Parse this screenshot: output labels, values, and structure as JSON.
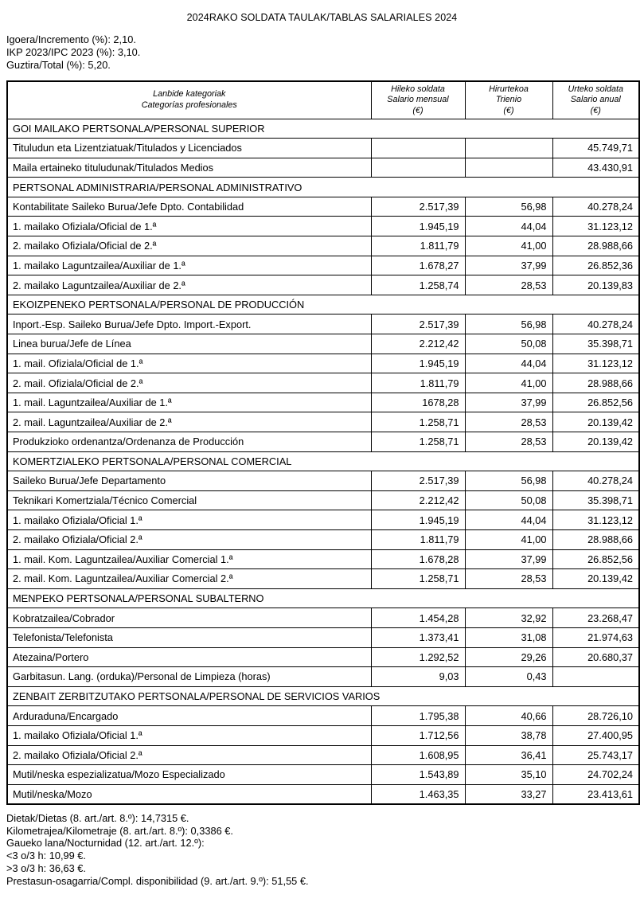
{
  "page": {
    "title": "2024RAKO SOLDATA TAULAK/TABLAS SALARIALES 2024"
  },
  "intro_lines": [
    "Igoera/Incremento (%): 2,10.",
    "IKP 2023/IPC 2023 (%): 3,10.",
    "Guztira/Total (%): 5,20."
  ],
  "table": {
    "columns": [
      {
        "lines": [
          "Lanbide kategoriak",
          "Categorías profesionales"
        ]
      },
      {
        "lines": [
          "Hileko soldata",
          "Salario mensual",
          "(€)"
        ]
      },
      {
        "lines": [
          "Hirurtekoa",
          "Trienio",
          "(€)"
        ]
      },
      {
        "lines": [
          "Urteko soldata",
          "Salario anual",
          "(€)"
        ]
      }
    ],
    "sections": [
      {
        "header": "GOI MAILAKO PERTSONALA/PERSONAL SUPERIOR",
        "rows": [
          {
            "label": "Tituludun eta Lizentziatuak/Titulados y Licenciados",
            "monthly": "",
            "triennium": "",
            "annual": "45.749,71"
          },
          {
            "label": "Maila ertaineko tituludunak/Titulados Medios",
            "monthly": "",
            "triennium": "",
            "annual": "43.430,91"
          }
        ]
      },
      {
        "header": "PERTSONAL ADMINISTRARIA/PERSONAL ADMINISTRATIVO",
        "rows": [
          {
            "label": "Kontabilitate Saileko Burua/Jefe Dpto. Contabilidad",
            "monthly": "2.517,39",
            "triennium": "56,98",
            "annual": "40.278,24"
          },
          {
            "label": "1. mailako Ofiziala/Oficial de 1.ª",
            "monthly": "1.945,19",
            "triennium": "44,04",
            "annual": "31.123,12"
          },
          {
            "label": "2. mailako Ofiziala/Oficial de 2.ª",
            "monthly": "1.811,79",
            "triennium": "41,00",
            "annual": "28.988,66"
          },
          {
            "label": "1. mailako Laguntzailea/Auxiliar de 1.ª",
            "monthly": "1.678,27",
            "triennium": "37,99",
            "annual": "26.852,36"
          },
          {
            "label": "2. mailako Laguntzailea/Auxiliar de 2.ª",
            "monthly": "1.258,74",
            "triennium": "28,53",
            "annual": "20.139,83"
          }
        ]
      },
      {
        "header": "EKOIZPENEKO PERTSONALA/PERSONAL DE PRODUCCIÓN",
        "rows": [
          {
            "label": "Inport.-Esp. Saileko Burua/Jefe Dpto. Import.-Export.",
            "monthly": "2.517,39",
            "triennium": "56,98",
            "annual": "40.278,24"
          },
          {
            "label": "Linea burua/Jefe de Línea",
            "monthly": "2.212,42",
            "triennium": "50,08",
            "annual": "35.398,71"
          },
          {
            "label": "1. mail. Ofiziala/Oficial de 1.ª",
            "monthly": "1.945,19",
            "triennium": "44,04",
            "annual": "31.123,12"
          },
          {
            "label": "2. mail. Ofiziala/Oficial de 2.ª",
            "monthly": "1.811,79",
            "triennium": "41,00",
            "annual": "28.988,66"
          },
          {
            "label": "1. mail. Laguntzailea/Auxiliar de 1.ª",
            "monthly": "1678,28",
            "triennium": "37,99",
            "annual": "26.852,56"
          },
          {
            "label": "2. mail. Laguntzailea/Auxiliar de 2.ª",
            "monthly": "1.258,71",
            "triennium": "28,53",
            "annual": "20.139,42"
          },
          {
            "label": "Produkzioko ordenantza/Ordenanza de Producción",
            "monthly": "1.258,71",
            "triennium": "28,53",
            "annual": "20.139,42"
          }
        ]
      },
      {
        "header": "KOMERTZIALEKO PERTSONALA/PERSONAL COMERCIAL",
        "rows": [
          {
            "label": "Saileko Burua/Jefe Departamento",
            "monthly": "2.517,39",
            "triennium": "56,98",
            "annual": "40.278,24"
          },
          {
            "label": "Teknikari Komertziala/Técnico Comercial",
            "monthly": "2.212,42",
            "triennium": "50,08",
            "annual": "35.398,71"
          },
          {
            "label": "1. mailako Ofiziala/Oficial 1.ª",
            "monthly": "1.945,19",
            "triennium": "44,04",
            "annual": "31.123,12"
          },
          {
            "label": "2. mailako Ofiziala/Oficial 2.ª",
            "monthly": "1.811,79",
            "triennium": "41,00",
            "annual": "28.988,66"
          },
          {
            "label": "1. mail. Kom. Laguntzailea/Auxiliar Comercial 1.ª",
            "monthly": "1.678,28",
            "triennium": "37,99",
            "annual": "26.852,56"
          },
          {
            "label": "2. mail. Kom. Laguntzailea/Auxiliar Comercial 2.ª",
            "monthly": "1.258,71",
            "triennium": "28,53",
            "annual": "20.139,42"
          }
        ]
      },
      {
        "header": "MENPEKO PERTSONALA/PERSONAL SUBALTERNO",
        "rows": [
          {
            "label": "Kobratzailea/Cobrador",
            "monthly": "1.454,28",
            "triennium": "32,92",
            "annual": "23.268,47"
          },
          {
            "label": "Telefonista/Telefonista",
            "monthly": "1.373,41",
            "triennium": "31,08",
            "annual": "21.974,63"
          },
          {
            "label": "Atezaina/Portero",
            "monthly": "1.292,52",
            "triennium": "29,26",
            "annual": "20.680,37"
          },
          {
            "label": "Garbitasun. Lang. (orduka)/Personal de Limpieza (horas)",
            "monthly": "9,03",
            "triennium": "0,43",
            "annual": ""
          }
        ]
      },
      {
        "header": "ZENBAIT ZERBITZUTAKO PERTSONALA/PERSONAL DE SERVICIOS VARIOS",
        "rows": [
          {
            "label": "Arduraduna/Encargado",
            "monthly": "1.795,38",
            "triennium": "40,66",
            "annual": "28.726,10"
          },
          {
            "label": "1. mailako Ofiziala/Oficial 1.ª",
            "monthly": "1.712,56",
            "triennium": "38,78",
            "annual": "27.400,95"
          },
          {
            "label": "2. mailako Ofiziala/Oficial 2.ª",
            "monthly": "1.608,95",
            "triennium": "36,41",
            "annual": "25.743,17"
          },
          {
            "label": "Mutil/neska espezializatua/Mozo Especializado",
            "monthly": "1.543,89",
            "triennium": "35,10",
            "annual": "24.702,24"
          },
          {
            "label": "Mutil/neska/Mozo",
            "monthly": "1.463,35",
            "triennium": "33,27",
            "annual": "23.413,61"
          }
        ]
      }
    ]
  },
  "footnote_lines": [
    "Dietak/Dietas (8. art./art. 8.º): 14,7315 €.",
    "Kilometrajea/Kilometraje (8. art./art. 8.º): 0,3386 €.",
    "Gaueko lana/Nocturnidad (12. art./art. 12.º):",
    "<3 o/3 h: 10,99 €.",
    ">3 o/3 h: 36,63 €.",
    "Prestasun-osagarria/Compl. disponibilidad (9. art./art. 9.º): 51,55 €."
  ]
}
